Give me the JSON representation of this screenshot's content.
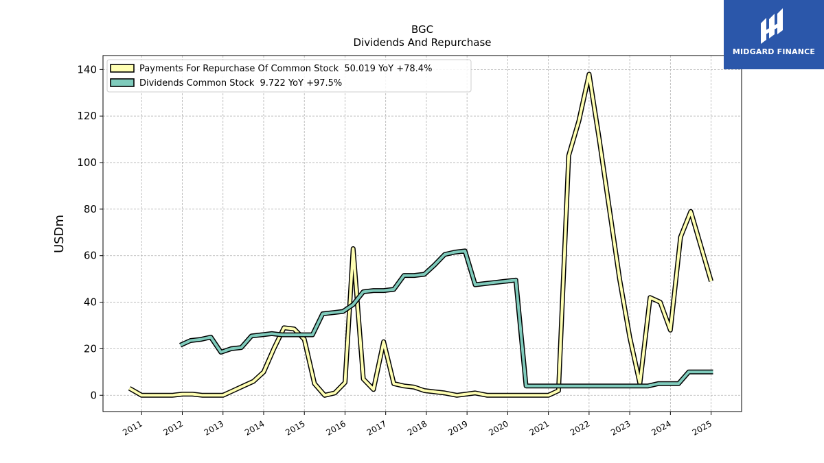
{
  "chart_data": {
    "type": "line",
    "title": "BGC",
    "subtitle": "Dividends And Repurchase",
    "ylabel": "USDm",
    "xlabel": "",
    "xlim": [
      2010.05,
      2025.75
    ],
    "ylim": [
      -7,
      146
    ],
    "yticks": [
      0,
      20,
      40,
      60,
      80,
      100,
      120,
      140
    ],
    "xticks": [
      2011,
      2012,
      2013,
      2014,
      2015,
      2016,
      2017,
      2018,
      2019,
      2020,
      2021,
      2022,
      2023,
      2024,
      2025
    ],
    "grid": true,
    "legend_position": "top-left",
    "series": [
      {
        "name": "Payments For Repurchase Of Common Stock",
        "legend_label": "Payments For Repurchase Of Common Stock  50.019 YoY +78.4%",
        "color": "#ffffb3",
        "x": [
          2010.7,
          2011.0,
          2011.25,
          2011.5,
          2011.75,
          2012.0,
          2012.25,
          2012.5,
          2012.75,
          2013.0,
          2013.25,
          2013.5,
          2013.75,
          2014.0,
          2014.25,
          2014.5,
          2014.75,
          2015.0,
          2015.25,
          2015.5,
          2015.75,
          2016.0,
          2016.2,
          2016.45,
          2016.7,
          2016.95,
          2017.2,
          2017.45,
          2017.7,
          2017.95,
          2018.2,
          2018.45,
          2018.75,
          2019.2,
          2019.5,
          2019.75,
          2020.0,
          2020.25,
          2020.5,
          2020.75,
          2021.0,
          2021.25,
          2021.5,
          2021.75,
          2022.0,
          2022.25,
          2022.5,
          2022.75,
          2023.0,
          2023.25,
          2023.5,
          2023.75,
          2024.0,
          2024.25,
          2024.5,
          2024.75,
          2025.0
        ],
        "values": [
          3,
          0,
          0,
          0,
          0,
          0.5,
          0.5,
          0,
          0,
          0,
          2,
          4,
          6,
          10,
          20,
          29,
          28.5,
          24,
          5,
          0,
          1,
          5.5,
          63,
          7,
          2.5,
          23,
          5,
          4,
          3.5,
          2,
          1.5,
          1,
          0,
          1,
          0,
          0,
          0,
          0,
          0,
          0,
          0,
          2,
          103,
          118,
          138,
          110,
          80,
          50,
          25,
          5,
          42,
          40,
          28,
          68,
          79,
          64,
          49
        ]
      },
      {
        "name": "Dividends Common Stock",
        "legend_label": "Dividends Common Stock  9.722 YoY +97.5%",
        "color": "#7fcbbc",
        "x": [
          2011.95,
          2012.2,
          2012.45,
          2012.7,
          2012.95,
          2013.2,
          2013.45,
          2013.7,
          2013.95,
          2014.2,
          2014.45,
          2014.7,
          2014.95,
          2015.2,
          2015.45,
          2015.7,
          2015.95,
          2016.2,
          2016.45,
          2016.7,
          2016.95,
          2017.2,
          2017.45,
          2017.7,
          2017.95,
          2018.2,
          2018.45,
          2018.7,
          2018.95,
          2019.2,
          2019.45,
          2019.7,
          2019.95,
          2020.2,
          2020.45,
          2021.0,
          2021.5,
          2022.0,
          2022.5,
          2023.0,
          2023.45,
          2023.7,
          2024.2,
          2024.45,
          2024.7,
          2025.05
        ],
        "values": [
          21.5,
          23.5,
          24,
          25,
          18.5,
          20,
          20.5,
          25.5,
          26,
          26.5,
          26,
          26,
          26,
          26,
          35,
          35.5,
          36,
          39,
          44.5,
          45,
          45,
          45.5,
          51.5,
          51.5,
          52,
          56,
          60.5,
          61.5,
          62,
          47.5,
          48,
          48.5,
          49,
          49.5,
          4,
          4,
          4,
          4,
          4,
          4,
          4,
          5,
          5,
          10,
          10,
          10
        ]
      }
    ]
  },
  "logo": {
    "text": "MIDGARD FINANCE",
    "background": "#2b57aa"
  }
}
